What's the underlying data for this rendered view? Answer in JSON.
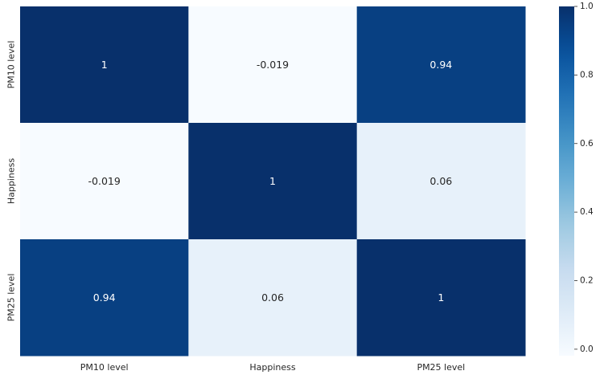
{
  "chart_data": {
    "type": "heatmap",
    "title": "",
    "xlabel": "",
    "ylabel": "",
    "x_categories": [
      "PM10 level",
      "Happiness",
      "PM25 level"
    ],
    "y_categories": [
      "PM10 level",
      "Happiness",
      "PM25 level"
    ],
    "values": [
      [
        1,
        -0.019,
        0.94
      ],
      [
        -0.019,
        1,
        0.06
      ],
      [
        0.94,
        0.06,
        1
      ]
    ],
    "cell_labels": [
      [
        "1",
        "-0.019",
        "0.94"
      ],
      [
        "-0.019",
        "1",
        "0.06"
      ],
      [
        "0.94",
        "0.06",
        "1"
      ]
    ],
    "colormap": "Blues",
    "vmin": -0.019,
    "vmax": 1.0,
    "colorbar": {
      "ticks": [
        0.0,
        0.2,
        0.4,
        0.6,
        0.8,
        1.0
      ],
      "tick_labels": [
        "0.0",
        "0.2",
        "0.4",
        "0.6",
        "0.8",
        "1.0"
      ],
      "placement": "right"
    },
    "grid": false,
    "annotations": true
  }
}
